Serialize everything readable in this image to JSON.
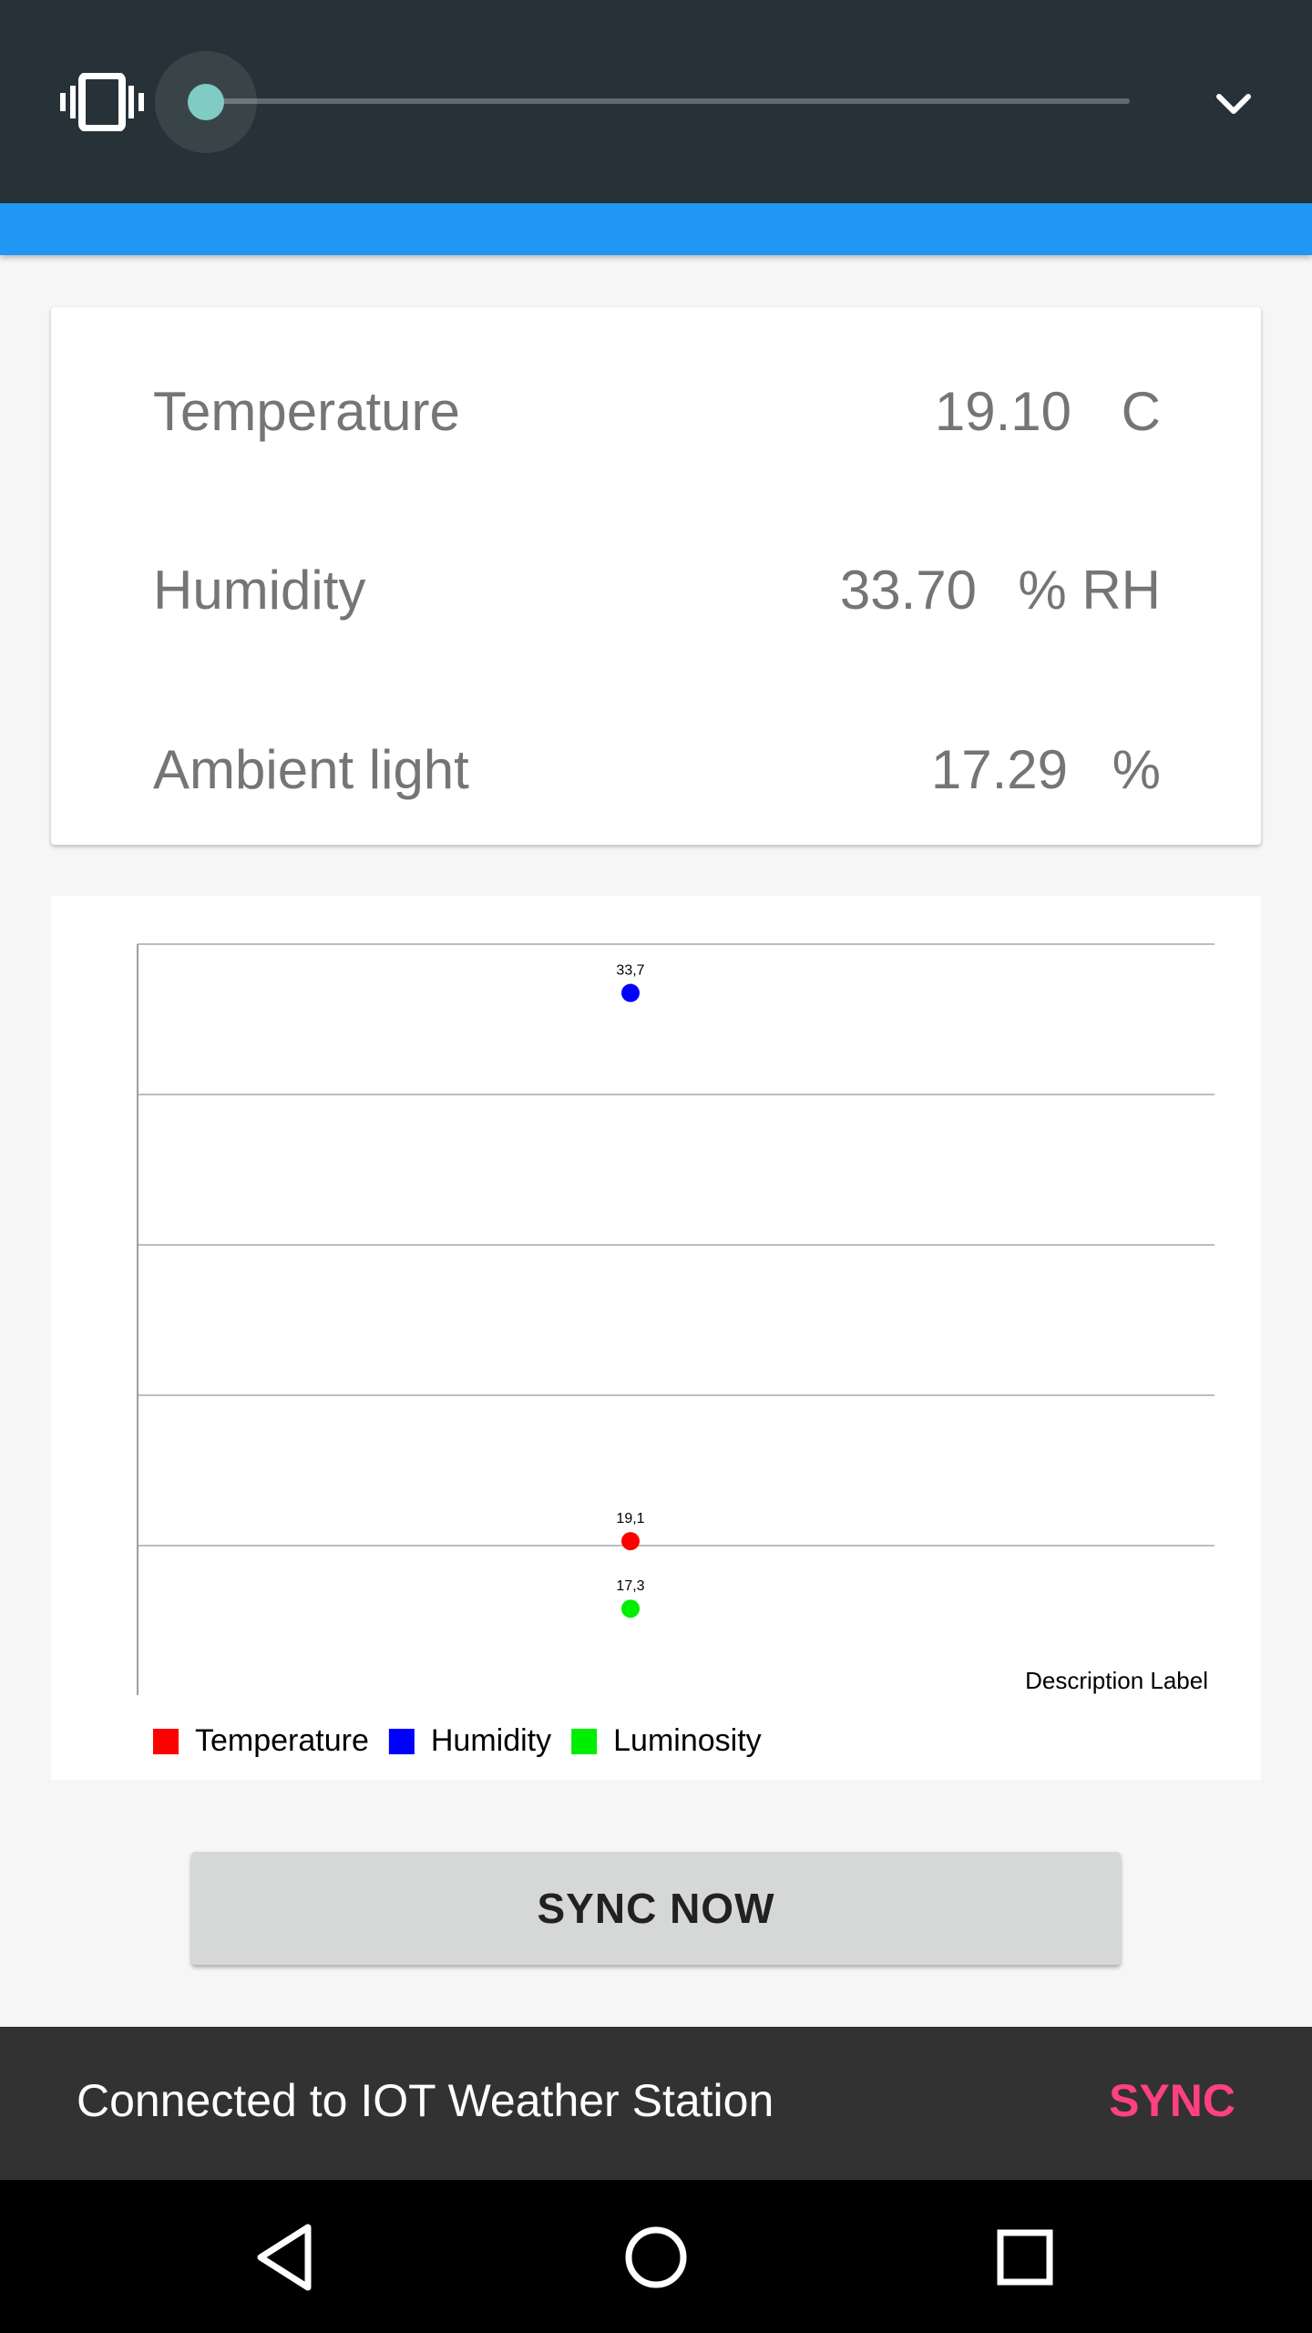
{
  "volume_panel": {
    "slider_level": 0,
    "icons": {
      "ringer": "vibrate-icon",
      "expand": "chevron-down-icon"
    },
    "colors": {
      "background": "#263238",
      "thumb": "#80cbc4"
    }
  },
  "readings": [
    {
      "label": "Temperature",
      "value": "19.10",
      "unit": "C"
    },
    {
      "label": "Humidity",
      "value": "33.70",
      "unit": "% RH"
    },
    {
      "label": "Ambient light",
      "value": "17.29",
      "unit": "%"
    }
  ],
  "chart_data": {
    "type": "scatter",
    "description": "Description Label",
    "grid": true,
    "legend_position": "bottom-left",
    "series": [
      {
        "name": "Temperature",
        "color": "#ff0000",
        "x": [
          0
        ],
        "y": [
          19.1
        ],
        "label": "19,1"
      },
      {
        "name": "Humidity",
        "color": "#0000ff",
        "x": [
          0
        ],
        "y": [
          33.7
        ],
        "label": "33,7"
      },
      {
        "name": "Luminosity",
        "color": "#00ee00",
        "x": [
          0
        ],
        "y": [
          17.3
        ],
        "label": "17,3"
      }
    ]
  },
  "sync_button": {
    "label": "SYNC NOW"
  },
  "snackbar": {
    "message": "Connected to IOT Weather Station",
    "action": "SYNC",
    "action_color": "#ff4081"
  },
  "nav": {
    "back": "back-icon",
    "home": "home-icon",
    "recents": "recents-icon"
  }
}
